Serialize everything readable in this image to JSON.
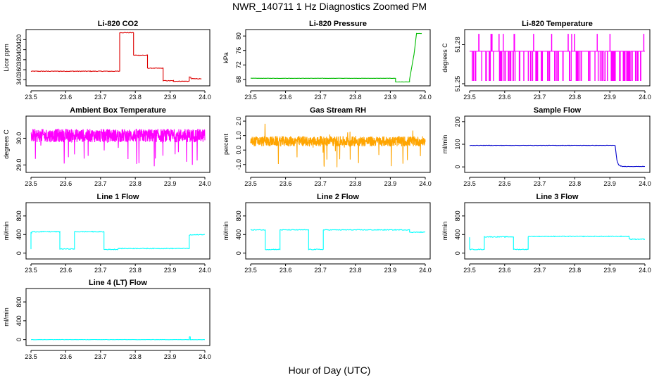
{
  "figure": {
    "title": "NWR_140711  1 Hz Diagnostics Zoomed PM",
    "xlabel": "Hour of Day (UTC)"
  },
  "chart_data": [
    {
      "type": "line",
      "title": "Li-820 CO2",
      "ylabel": "Licor ppm",
      "xlim": [
        23.5,
        24.0
      ],
      "ylim": [
        332,
        436
      ],
      "xticks": [
        "23.5",
        "23.6",
        "23.7",
        "23.8",
        "23.9",
        "24.0"
      ],
      "yticks": [
        340,
        360,
        380,
        400,
        420
      ],
      "color": "#dd0000",
      "series": [
        {
          "x": [
            23.5,
            23.755,
            23.755,
            23.795,
            23.795,
            23.835,
            23.835,
            23.88,
            23.88,
            23.91,
            23.91,
            23.955,
            23.955,
            23.96,
            23.96,
            23.99
          ],
          "y": [
            357,
            357,
            434,
            434,
            389,
            389,
            363,
            363,
            338,
            338,
            337,
            337,
            345,
            345,
            342,
            342
          ],
          "noise": 0.6
        }
      ]
    },
    {
      "type": "line",
      "title": "Li-820 Pressure",
      "ylabel": "kPa",
      "xlim": [
        23.5,
        24.0
      ],
      "ylim": [
        66.8,
        81.2
      ],
      "xticks": [
        "23.5",
        "23.6",
        "23.7",
        "23.8",
        "23.9",
        "24.0"
      ],
      "yticks": [
        68,
        72,
        76,
        80
      ],
      "color": "#00bb00",
      "series": [
        {
          "x": [
            23.5,
            23.915,
            23.915,
            23.955,
            23.955,
            23.968,
            23.975,
            23.975,
            23.99
          ],
          "y": [
            68.3,
            68.3,
            67.3,
            67.3,
            68,
            75,
            80.7,
            80.7,
            80.7
          ],
          "noise": 0.03
        }
      ]
    },
    {
      "type": "line",
      "title": "Li-820 Temperature",
      "ylabel": "degrees C",
      "xlim": [
        23.5,
        24.0
      ],
      "ylim": [
        51.25,
        51.29
      ],
      "xticks": [
        "23.5",
        "23.6",
        "23.7",
        "23.8",
        "23.9",
        "24.0"
      ],
      "yticks": [
        "51.25",
        "51.28"
      ],
      "color": "#ff00ff",
      "series": [
        {
          "levels": [
            51.2525,
            51.275,
            51.288
          ],
          "base": 51.275,
          "x": [
            23.5,
            24.0
          ]
        }
      ]
    },
    {
      "type": "line",
      "title": "Ambient Box Temperature",
      "ylabel": "degrees C",
      "xlim": [
        23.5,
        24.0
      ],
      "ylim": [
        28.8,
        30.75
      ],
      "xticks": [
        "23.5",
        "23.6",
        "23.7",
        "23.8",
        "23.9",
        "24.0"
      ],
      "yticks": [
        "29.0",
        "30.0"
      ],
      "color": "#ff00ff",
      "series": [
        {
          "x": [
            23.5,
            24.0
          ],
          "mean": 30.1,
          "spread": 0.25,
          "dips_to": 28.9
        }
      ]
    },
    {
      "type": "line",
      "title": "Gas Stream RH",
      "ylabel": "percent",
      "xlim": [
        23.5,
        24.0
      ],
      "ylim": [
        -1.4,
        2.2
      ],
      "xticks": [
        "23.5",
        "23.6",
        "23.7",
        "23.8",
        "23.9",
        "24.0"
      ],
      "yticks": [
        "-1.0",
        "0.0",
        "1.0",
        "2.0"
      ],
      "color": "#ffa500",
      "series": [
        {
          "x": [
            23.5,
            24.0
          ],
          "mean": 0.6,
          "spread": 0.35,
          "min": -1.2,
          "max": 2.0
        }
      ]
    },
    {
      "type": "line",
      "title": "Sample Flow",
      "ylabel": "ml/min",
      "xlim": [
        23.5,
        24.0
      ],
      "ylim": [
        -15,
        215
      ],
      "xticks": [
        "23.5",
        "23.6",
        "23.7",
        "23.8",
        "23.9",
        "24.0"
      ],
      "yticks": [
        0,
        100,
        200
      ],
      "color": "#0000cc",
      "series": [
        {
          "x": [
            23.5,
            23.915,
            23.92,
            23.925,
            23.93,
            23.935,
            24.0
          ],
          "y": [
            95,
            95,
            30,
            8,
            5,
            2,
            2
          ],
          "noise": 0.8
        }
      ]
    },
    {
      "type": "line",
      "title": "Line 1 Flow",
      "ylabel": "ml/min",
      "xlim": [
        23.5,
        24.0
      ],
      "ylim": [
        -80,
        1040
      ],
      "xticks": [
        "23.5",
        "23.6",
        "23.7",
        "23.8",
        "23.9",
        "24.0"
      ],
      "yticks": [
        0,
        400,
        800
      ],
      "color": "#00ffff",
      "series": [
        {
          "x": [
            23.5,
            23.5,
            23.502,
            23.502,
            23.583,
            23.583,
            23.625,
            23.625,
            23.71,
            23.71,
            23.75,
            23.75,
            23.955,
            23.955,
            24.0
          ],
          "y": [
            80,
            440,
            440,
            460,
            460,
            90,
            90,
            460,
            460,
            80,
            80,
            100,
            100,
            390,
            400
          ],
          "noise": 8
        }
      ]
    },
    {
      "type": "line",
      "title": "Line 2 Flow",
      "ylabel": "ml/min",
      "xlim": [
        23.5,
        24.0
      ],
      "ylim": [
        -80,
        1040
      ],
      "xticks": [
        "23.5",
        "23.6",
        "23.7",
        "23.8",
        "23.9",
        "24.0"
      ],
      "yticks": [
        0,
        400,
        800
      ],
      "color": "#00ffff",
      "series": [
        {
          "x": [
            23.5,
            23.542,
            23.542,
            23.584,
            23.584,
            23.666,
            23.666,
            23.708,
            23.708,
            23.955,
            23.955,
            24.0
          ],
          "y": [
            500,
            500,
            80,
            80,
            500,
            500,
            80,
            80,
            500,
            500,
            450,
            450
          ],
          "noise": 8
        }
      ]
    },
    {
      "type": "line",
      "title": "Line 3 Flow",
      "ylabel": "ml/min",
      "xlim": [
        23.5,
        24.0
      ],
      "ylim": [
        -80,
        1040
      ],
      "xticks": [
        "23.5",
        "23.6",
        "23.7",
        "23.8",
        "23.9",
        "24.0"
      ],
      "yticks": [
        0,
        400,
        800
      ],
      "color": "#00ffff",
      "series": [
        {
          "x": [
            23.5,
            23.5,
            23.502,
            23.502,
            23.542,
            23.542,
            23.625,
            23.625,
            23.667,
            23.667,
            23.955,
            23.955,
            24.0
          ],
          "y": [
            350,
            80,
            80,
            80,
            80,
            350,
            350,
            80,
            80,
            360,
            360,
            300,
            300
          ],
          "noise": 8
        }
      ]
    },
    {
      "type": "line",
      "title": "Line 4 (LT) Flow",
      "ylabel": "ml/min",
      "xlim": [
        23.5,
        24.0
      ],
      "ylim": [
        -80,
        1040
      ],
      "xticks": [
        "23.5",
        "23.6",
        "23.7",
        "23.8",
        "23.9",
        "24.0"
      ],
      "yticks": [
        0,
        400,
        800
      ],
      "color": "#00ffff",
      "series": [
        {
          "x": [
            23.5,
            23.955,
            23.955,
            23.958,
            23.958,
            24.0
          ],
          "y": [
            0,
            0,
            60,
            60,
            0,
            0
          ],
          "noise": 3
        }
      ]
    }
  ]
}
